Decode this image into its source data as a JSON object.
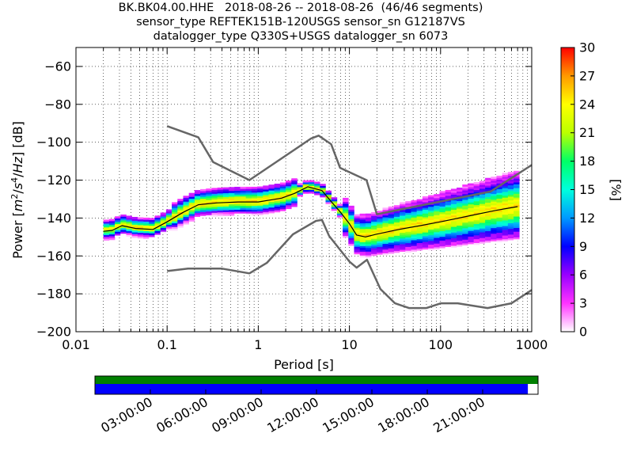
{
  "chart_data": {
    "type": "heatmap",
    "title_lines": [
      "BK.BK04.00.HHE   2018-08-26 -- 2018-08-26  (46/46 segments)",
      "sensor_type REFTEK151B-120USGS sensor_sn G12187VS",
      "datalogger_type Q330S+USGS datalogger_sn 6073"
    ],
    "xlabel": "Period [s]",
    "ylabel": "Power [m²/s⁴/Hz] [dB]",
    "x_scale": "log",
    "xlim": [
      0.01,
      1000
    ],
    "ylim": [
      -200,
      -50
    ],
    "x_ticks": [
      0.01,
      0.1,
      1,
      10,
      100,
      1000
    ],
    "x_tick_labels": [
      "0.01",
      "0.1",
      "1",
      "10",
      "100",
      "1000"
    ],
    "y_ticks": [
      -200,
      -180,
      -160,
      -140,
      -120,
      -100,
      -80,
      -60
    ],
    "y_tick_labels": [
      "−200",
      "−180",
      "−160",
      "−140",
      "−120",
      "−100",
      "−80",
      "−60"
    ],
    "grid": "dotted",
    "colorbar": {
      "label": "[%]",
      "range": [
        0,
        30
      ],
      "ticks": [
        "0",
        "3",
        "6",
        "9",
        "12",
        "15",
        "18",
        "21",
        "24",
        "27",
        "30"
      ],
      "colormap": [
        "#ffffff",
        "#ff33ff",
        "#9900ff",
        "#0000ff",
        "#0099ff",
        "#00ffdd",
        "#00ff66",
        "#bbff00",
        "#ffff00",
        "#ff9900",
        "#ff0000"
      ]
    },
    "series": [
      {
        "role": "high-noise-model",
        "color": "#666666",
        "points": [
          [
            0.1,
            -91.5
          ],
          [
            0.22,
            -97.4
          ],
          [
            0.32,
            -110.5
          ],
          [
            0.8,
            -120
          ],
          [
            3.8,
            -98
          ],
          [
            4.6,
            -96.5
          ],
          [
            6.3,
            -101
          ],
          [
            7.9,
            -113.5
          ],
          [
            15.4,
            -120
          ],
          [
            20,
            -138
          ],
          [
            354,
            -126
          ],
          [
            1000,
            -112
          ]
        ]
      },
      {
        "role": "low-noise-model",
        "color": "#666666",
        "points": [
          [
            0.1,
            -168
          ],
          [
            0.17,
            -166.7
          ],
          [
            0.4,
            -166.7
          ],
          [
            0.8,
            -169.2
          ],
          [
            1.24,
            -163.7
          ],
          [
            2.4,
            -148.6
          ],
          [
            4.3,
            -141.5
          ],
          [
            5.0,
            -141
          ],
          [
            6.0,
            -149.5
          ],
          [
            10,
            -163
          ],
          [
            12,
            -166.2
          ],
          [
            15.6,
            -162
          ],
          [
            21.9,
            -177.5
          ],
          [
            31.6,
            -185
          ],
          [
            45,
            -187.5
          ],
          [
            70,
            -187.5
          ],
          [
            101,
            -185
          ],
          [
            154,
            -185
          ],
          [
            328,
            -187.5
          ],
          [
            600,
            -185
          ],
          [
            1000,
            -178
          ]
        ]
      },
      {
        "role": "mode-psd",
        "color": "#000000",
        "points": [
          [
            0.02,
            -147
          ],
          [
            0.025,
            -146.5
          ],
          [
            0.032,
            -144
          ],
          [
            0.045,
            -145.5
          ],
          [
            0.07,
            -146
          ],
          [
            0.1,
            -142
          ],
          [
            0.15,
            -137
          ],
          [
            0.22,
            -133
          ],
          [
            0.35,
            -132
          ],
          [
            0.6,
            -131.5
          ],
          [
            1,
            -131.5
          ],
          [
            1.8,
            -129.5
          ],
          [
            2.5,
            -127
          ],
          [
            3.5,
            -123.5
          ],
          [
            5,
            -125.5
          ],
          [
            6.5,
            -132
          ],
          [
            8,
            -137
          ],
          [
            10,
            -143
          ],
          [
            12,
            -149
          ],
          [
            15,
            -150
          ],
          [
            20,
            -148.5
          ],
          [
            35,
            -146
          ],
          [
            60,
            -144
          ],
          [
            100,
            -142
          ],
          [
            200,
            -139
          ],
          [
            400,
            -136
          ],
          [
            700,
            -134
          ]
        ]
      }
    ]
  },
  "availability": {
    "time_ticks": [
      "03:00:00",
      "06:00:00",
      "09:00:00",
      "12:00:00",
      "15:00:00",
      "18:00:00",
      "21:00:00"
    ],
    "data_bar_color": "#008000",
    "gap_bar_color": "#0000ff",
    "coverage_fraction": 0.977
  }
}
